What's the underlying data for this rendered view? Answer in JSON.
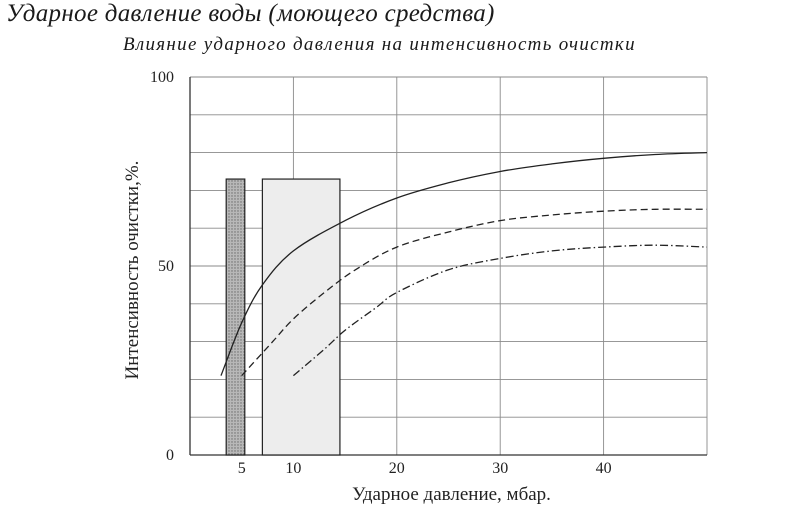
{
  "header": {
    "title": "Ударное давление воды (моющего средства)"
  },
  "chart_data": {
    "type": "line",
    "title": "Влияние ударного давления на интенсивность очистки",
    "xlabel": "Ударное давление, мбар.",
    "ylabel": "Интенсивность очистки,%.",
    "xlim": [
      0,
      50
    ],
    "ylim": [
      0,
      100
    ],
    "x_ticks": [
      5,
      10,
      20,
      30,
      40
    ],
    "y_ticks": [
      0,
      50,
      100
    ],
    "grid": true,
    "legend": "none",
    "series": [
      {
        "style": "solid",
        "color": "#222222",
        "points": [
          [
            3,
            21
          ],
          [
            5,
            35
          ],
          [
            7,
            45
          ],
          [
            10,
            54
          ],
          [
            15,
            62
          ],
          [
            20,
            68
          ],
          [
            25,
            72
          ],
          [
            30,
            75
          ],
          [
            35,
            77
          ],
          [
            40,
            78.5
          ],
          [
            45,
            79.5
          ],
          [
            50,
            80
          ]
        ]
      },
      {
        "style": "dashed",
        "color": "#222222",
        "points": [
          [
            5,
            21
          ],
          [
            8,
            30
          ],
          [
            10,
            36
          ],
          [
            13,
            43
          ],
          [
            16,
            49
          ],
          [
            20,
            55
          ],
          [
            25,
            59
          ],
          [
            30,
            62
          ],
          [
            35,
            63.5
          ],
          [
            40,
            64.5
          ],
          [
            45,
            65
          ],
          [
            50,
            65
          ]
        ]
      },
      {
        "style": "dash-dot",
        "color": "#222222",
        "points": [
          [
            10,
            21
          ],
          [
            13,
            28
          ],
          [
            15,
            33
          ],
          [
            18,
            39
          ],
          [
            20,
            43
          ],
          [
            25,
            49
          ],
          [
            30,
            52
          ],
          [
            35,
            54
          ],
          [
            40,
            55
          ],
          [
            45,
            55.5
          ],
          [
            50,
            55
          ]
        ]
      }
    ],
    "shaded_regions": [
      {
        "x0": 3.5,
        "x1": 5.3,
        "y0": 0,
        "y1": 73,
        "fill": "hatched"
      },
      {
        "x0": 7,
        "x1": 14.5,
        "y0": 0,
        "y1": 73,
        "fill": "light"
      }
    ]
  }
}
